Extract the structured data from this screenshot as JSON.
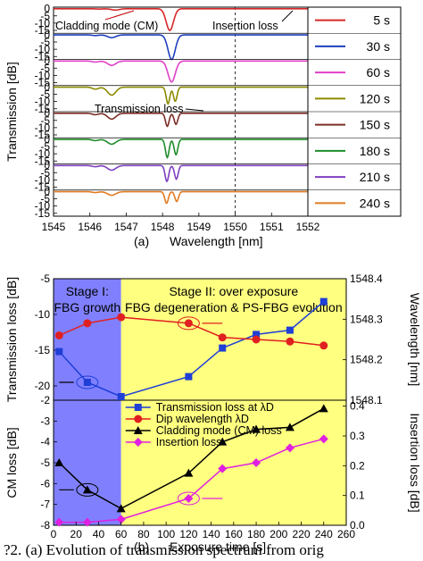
{
  "chart_data": [
    {
      "type": "line",
      "panel_label": "(a)",
      "xlabel": "Wavelength [nm]",
      "ylabel": "Transmission [dB]",
      "xlim": [
        1545,
        1552
      ],
      "x_ticks": [
        "1545",
        "1546",
        "1547",
        "1548",
        "1549",
        "1550",
        "1551",
        "1552"
      ],
      "subplot_ylim": [
        -17,
        1
      ],
      "subplot_y_ticks": [
        "0",
        "-5",
        "-10",
        "-15"
      ],
      "reference_line_x": 1550,
      "annotations": [
        "Cladding mode (CM)",
        "Insertion loss",
        "Transmission loss"
      ],
      "series": [
        {
          "name": "5 s",
          "color": "#d62728",
          "cm_x": 1546.7,
          "cm_depth": -0.9,
          "dip_x": 1548.2,
          "dip_depth": -15.0,
          "split": 0.0
        },
        {
          "name": "30 s",
          "color": "#1f3fbf",
          "cm_x": 1546.6,
          "cm_depth": -1.9,
          "dip_x": 1548.25,
          "dip_depth": -17.0,
          "split": 0.0
        },
        {
          "name": "60 s",
          "color": "#e040c8",
          "cm_x": 1546.6,
          "cm_depth": -3.0,
          "dip_x": 1548.25,
          "dip_depth": -14.5,
          "split": 0.0
        },
        {
          "name": "120 s",
          "color": "#8b8b00",
          "cm_x": 1546.6,
          "cm_depth": -5.5,
          "dip_x": 1548.25,
          "dip_depth": -11.5,
          "split": 0.1
        },
        {
          "name": "150 s",
          "color": "#7b2d26",
          "cm_x": 1546.6,
          "cm_depth": -4.0,
          "dip_x": 1548.25,
          "dip_depth": -9.0,
          "split": 0.12
        },
        {
          "name": "180 s",
          "color": "#1e8c2a",
          "cm_x": 1546.6,
          "cm_depth": -3.3,
          "dip_x": 1548.25,
          "dip_depth": -12.5,
          "split": 0.12
        },
        {
          "name": "210 s",
          "color": "#7e3fc0",
          "cm_x": 1546.6,
          "cm_depth": -3.2,
          "dip_x": 1548.25,
          "dip_depth": -11.0,
          "split": 0.13
        },
        {
          "name": "240 s",
          "color": "#e07b20",
          "cm_x": 1546.6,
          "cm_depth": -2.5,
          "dip_x": 1548.25,
          "dip_depth": -8.0,
          "split": 0.14
        }
      ]
    },
    {
      "type": "line",
      "panel_label": "(b)",
      "xlabel": "Exposure time [s]",
      "xlim": [
        0,
        260
      ],
      "x_ticks": [
        "0",
        "20",
        "40",
        "60",
        "80",
        "100",
        "120",
        "140",
        "160",
        "180",
        "200",
        "220",
        "240",
        "260"
      ],
      "stage1": {
        "title": "Stage I:",
        "subtitle": "FBG growth",
        "x_range": [
          0,
          60
        ],
        "color": "#8080ff"
      },
      "stage2": {
        "title": "Stage II: over exposure",
        "subtitle": "FBG degeneration & PS-FBG evolution",
        "x_range": [
          60,
          260
        ],
        "color": "#ffff80"
      },
      "top": {
        "ylabel_left": "Transmission loss [dB]",
        "ylabel_right": "Wavelength [nm]",
        "ylim_left": [
          -22,
          -5
        ],
        "ylim_right": [
          1548.1,
          1548.4
        ],
        "left_ticks": [
          "-5",
          "-10",
          "-15",
          "-20"
        ],
        "right_ticks": [
          "1548.4",
          "1548.3",
          "1548.2",
          "1548.1"
        ],
        "series": [
          {
            "name": "Transmission loss at λD",
            "axis": "left",
            "color": "#1f3fd6",
            "marker": "square",
            "x": [
              5,
              30,
              60,
              120,
              150,
              180,
              210,
              240
            ],
            "y": [
              -15.2,
              -19.5,
              -21.5,
              -18.7,
              -14.7,
              -12.8,
              -12.2,
              -8.2
            ]
          },
          {
            "name": "Dip wavelength λD",
            "axis": "right",
            "color": "#e02020",
            "marker": "circle",
            "x": [
              5,
              30,
              60,
              120,
              150,
              180,
              210,
              240
            ],
            "y": [
              1548.26,
              1548.29,
              1548.305,
              1548.29,
              1548.255,
              1548.25,
              1548.245,
              1548.235
            ]
          }
        ]
      },
      "bottom": {
        "ylabel_left": "CM loss [dB]",
        "ylabel_right": "Insertion loss [dB]",
        "ylim_left": [
          -8,
          -2
        ],
        "ylim_right": [
          0,
          0.42
        ],
        "left_ticks": [
          "-2",
          "-3",
          "-4",
          "-5",
          "-6",
          "-7",
          "-8"
        ],
        "right_ticks": [
          "0.4",
          "0.3",
          "0.2",
          "0.1",
          "0.0"
        ],
        "series": [
          {
            "name": "Cladding mode (CM) loss",
            "axis": "left",
            "color": "#000000",
            "marker": "triangle",
            "x": [
              5,
              30,
              60,
              120,
              150,
              180,
              210,
              240
            ],
            "y": [
              -5.0,
              -6.3,
              -7.2,
              -5.5,
              -4.0,
              -3.4,
              -3.3,
              -2.4
            ]
          },
          {
            "name": "Insertion loss",
            "axis": "right",
            "color": "#e020e0",
            "marker": "diamond",
            "x": [
              5,
              30,
              60,
              120,
              150,
              180,
              210,
              240
            ],
            "y": [
              0.01,
              0.01,
              0.02,
              0.09,
              0.19,
              0.21,
              0.26,
              0.29
            ]
          }
        ]
      }
    }
  ],
  "caption": "?2.   (a) Evolution of transmission spectrum from orig"
}
